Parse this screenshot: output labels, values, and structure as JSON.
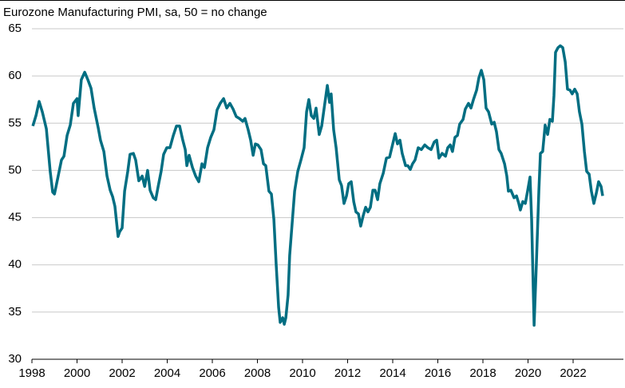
{
  "chart_data": {
    "type": "line",
    "title": "Eurozone Manufacturing PMI, sa, 50 = no change",
    "color": "#006e82",
    "grid": true,
    "xlim": [
      1998,
      2024.23
    ],
    "xticks": [
      1998,
      2000,
      2002,
      2004,
      2006,
      2008,
      2010,
      2012,
      2014,
      2016,
      2018,
      2020,
      2022
    ],
    "ylim": [
      30,
      65
    ],
    "yticks": [
      30,
      35,
      40,
      45,
      50,
      55,
      60,
      65
    ],
    "x": [
      1998.04,
      1998.18,
      1998.32,
      1998.46,
      1998.64,
      1998.81,
      1998.92,
      1999.0,
      1999.13,
      1999.31,
      1999.42,
      1999.56,
      1999.7,
      1999.84,
      2000.0,
      2000.05,
      2000.19,
      2000.34,
      2000.48,
      2000.62,
      2000.76,
      2000.94,
      2001.04,
      2001.19,
      2001.33,
      2001.47,
      2001.58,
      2001.68,
      2001.82,
      2001.89,
      2002.0,
      2002.11,
      2002.25,
      2002.35,
      2002.5,
      2002.6,
      2002.74,
      2002.89,
      2003.0,
      2003.13,
      2003.24,
      2003.38,
      2003.49,
      2003.59,
      2003.73,
      2003.84,
      2003.98,
      2004.12,
      2004.27,
      2004.41,
      2004.55,
      2004.69,
      2004.8,
      2004.87,
      2004.97,
      2005.12,
      2005.26,
      2005.4,
      2005.54,
      2005.65,
      2005.79,
      2005.93,
      2006.07,
      2006.21,
      2006.35,
      2006.5,
      2006.64,
      2006.78,
      2006.92,
      2007.06,
      2007.2,
      2007.35,
      2007.45,
      2007.59,
      2007.7,
      2007.81,
      2007.91,
      2008.02,
      2008.16,
      2008.27,
      2008.37,
      2008.51,
      2008.62,
      2008.73,
      2008.83,
      2008.94,
      2009.01,
      2009.12,
      2009.19,
      2009.26,
      2009.36,
      2009.43,
      2009.54,
      2009.65,
      2009.79,
      2009.93,
      2010.07,
      2010.18,
      2010.28,
      2010.39,
      2010.5,
      2010.6,
      2010.74,
      2010.85,
      2010.96,
      2011.1,
      2011.2,
      2011.27,
      2011.38,
      2011.49,
      2011.63,
      2011.73,
      2011.84,
      2011.95,
      2012.05,
      2012.16,
      2012.27,
      2012.37,
      2012.48,
      2012.58,
      2012.69,
      2012.8,
      2012.9,
      2013.01,
      2013.12,
      2013.22,
      2013.33,
      2013.43,
      2013.58,
      2013.72,
      2013.86,
      2014.0,
      2014.11,
      2014.21,
      2014.32,
      2014.42,
      2014.57,
      2014.67,
      2014.78,
      2014.88,
      2014.99,
      2015.13,
      2015.27,
      2015.42,
      2015.56,
      2015.7,
      2015.84,
      2015.95,
      2016.05,
      2016.19,
      2016.34,
      2016.44,
      2016.55,
      2016.65,
      2016.76,
      2016.87,
      2016.97,
      2017.12,
      2017.22,
      2017.36,
      2017.47,
      2017.58,
      2017.72,
      2017.82,
      2017.93,
      2018.04,
      2018.14,
      2018.25,
      2018.39,
      2018.5,
      2018.6,
      2018.71,
      2018.81,
      2018.96,
      2019.06,
      2019.13,
      2019.24,
      2019.38,
      2019.49,
      2019.59,
      2019.66,
      2019.77,
      2019.88,
      2019.98,
      2020.09,
      2020.16,
      2020.27,
      2020.37,
      2020.48,
      2020.55,
      2020.65,
      2020.76,
      2020.87,
      2020.97,
      2021.08,
      2021.15,
      2021.22,
      2021.33,
      2021.43,
      2021.54,
      2021.65,
      2021.75,
      2021.86,
      2021.96,
      2022.07,
      2022.18,
      2022.28,
      2022.39,
      2022.5,
      2022.6,
      2022.71,
      2022.81,
      2022.92,
      2023.03,
      2023.13,
      2023.24,
      2023.31
    ],
    "values": [
      54.7,
      55.8,
      57.3,
      56.2,
      54.4,
      49.9,
      47.7,
      47.5,
      49.0,
      51.1,
      51.5,
      53.7,
      54.8,
      57.1,
      57.6,
      55.8,
      59.6,
      60.4,
      59.6,
      58.7,
      56.6,
      54.5,
      53.2,
      52.0,
      49.4,
      47.9,
      47.2,
      46.2,
      43.0,
      43.5,
      43.9,
      47.8,
      49.9,
      51.7,
      51.8,
      51.1,
      48.9,
      49.4,
      48.3,
      50.0,
      47.9,
      47.1,
      46.9,
      48.2,
      49.9,
      51.7,
      52.4,
      52.4,
      53.7,
      54.7,
      54.7,
      53.2,
      52.2,
      50.5,
      51.6,
      50.3,
      49.4,
      48.8,
      50.7,
      50.3,
      52.4,
      53.5,
      54.3,
      56.4,
      57.1,
      57.6,
      56.6,
      57.1,
      56.5,
      55.7,
      55.5,
      55.2,
      55.5,
      54.3,
      53.2,
      51.6,
      52.8,
      52.7,
      52.2,
      50.7,
      50.5,
      47.8,
      47.5,
      44.8,
      40.1,
      35.5,
      33.9,
      34.4,
      33.7,
      34.4,
      36.8,
      41.0,
      44.4,
      47.8,
      49.9,
      51.1,
      52.4,
      56.2,
      57.5,
      55.8,
      55.5,
      56.6,
      53.8,
      54.7,
      56.6,
      59.0,
      57.2,
      58.1,
      54.3,
      52.4,
      49.0,
      48.4,
      46.5,
      47.3,
      48.6,
      48.8,
      46.7,
      45.6,
      45.4,
      44.1,
      45.2,
      46.1,
      45.6,
      46.1,
      47.9,
      47.9,
      46.9,
      48.6,
      49.7,
      51.3,
      51.4,
      52.8,
      53.9,
      52.8,
      53.2,
      51.8,
      50.5,
      50.5,
      50.1,
      50.7,
      51.1,
      52.4,
      52.2,
      52.7,
      52.4,
      52.2,
      53.0,
      53.2,
      51.3,
      51.8,
      51.5,
      52.4,
      52.7,
      52.0,
      53.5,
      53.7,
      54.9,
      55.4,
      56.5,
      57.1,
      56.6,
      57.5,
      58.5,
      59.8,
      60.6,
      59.6,
      56.6,
      56.2,
      54.9,
      55.1,
      54.1,
      52.2,
      51.8,
      50.7,
      49.4,
      47.8,
      47.9,
      47.1,
      47.3,
      46.5,
      45.8,
      46.7,
      46.5,
      47.8,
      49.3,
      44.8,
      33.6,
      40.1,
      47.8,
      51.8,
      52.0,
      54.8,
      53.8,
      55.4,
      55.2,
      57.9,
      62.5,
      63.0,
      63.2,
      63.0,
      61.5,
      58.6,
      58.5,
      58.1,
      58.6,
      58.1,
      56.2,
      54.9,
      52.0,
      49.9,
      49.6,
      47.8,
      46.5,
      47.6,
      48.8,
      48.3,
      47.3
    ]
  }
}
